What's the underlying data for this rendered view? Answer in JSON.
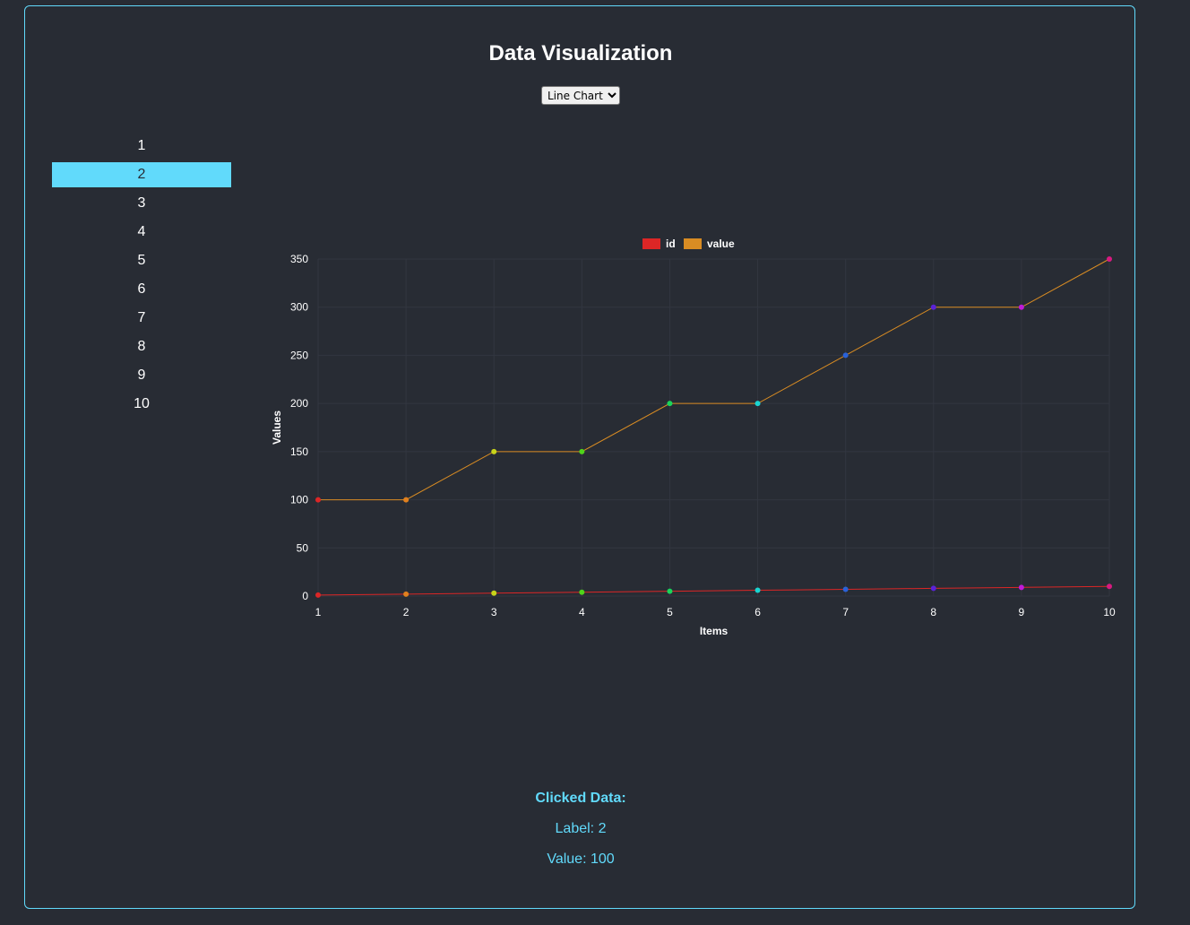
{
  "title": "Data Visualization",
  "chart_type_select": {
    "selected": "Line Chart",
    "options": [
      "Line Chart"
    ]
  },
  "items": [
    "1",
    "2",
    "3",
    "4",
    "5",
    "6",
    "7",
    "8",
    "9",
    "10"
  ],
  "selected_item_index": 1,
  "clicked": {
    "heading": "Clicked Data:",
    "label_text": "Label: 2",
    "value_text": "Value: 100"
  },
  "chart_data": {
    "type": "line",
    "categories": [
      "1",
      "2",
      "3",
      "4",
      "5",
      "6",
      "7",
      "8",
      "9",
      "10"
    ],
    "series": [
      {
        "name": "id",
        "values": [
          1,
          2,
          3,
          4,
          5,
          6,
          7,
          8,
          9,
          10
        ],
        "color": "#dc2626"
      },
      {
        "name": "value",
        "values": [
          100,
          100,
          150,
          150,
          200,
          200,
          250,
          300,
          300,
          350
        ],
        "color": "#d98c23"
      }
    ],
    "point_colors": [
      "#dc2626",
      "#e0801e",
      "#c8d41a",
      "#4fd41a",
      "#1ad45a",
      "#1ad4d0",
      "#2a62d8",
      "#5b22d8",
      "#c01ad8",
      "#d81a80"
    ],
    "xlabel": "Items",
    "ylabel": "Values",
    "ylim": [
      0,
      350
    ],
    "yticks": [
      0,
      50,
      100,
      150,
      200,
      250,
      300,
      350
    ],
    "grid": true,
    "legend_position": "top"
  }
}
